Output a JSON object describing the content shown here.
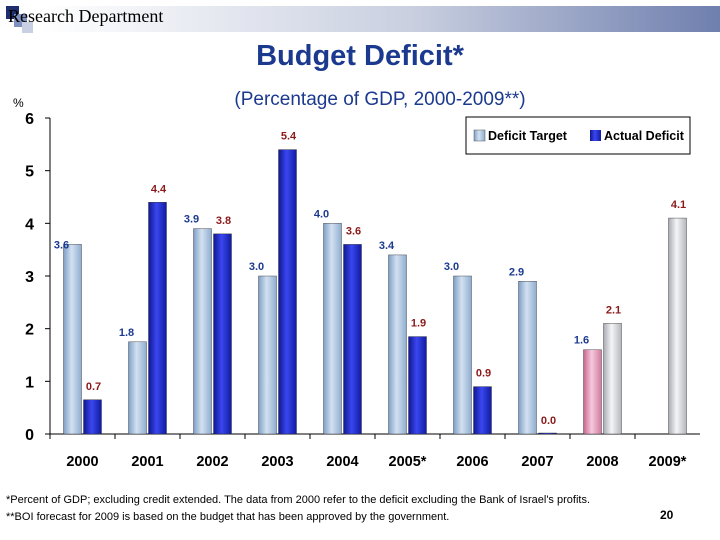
{
  "header": {
    "department": "Research Department"
  },
  "chart_data": {
    "type": "bar",
    "title": "Budget Deficit*",
    "subtitle": "(Percentage of GDP, 2000-2009**)",
    "ylabel": "%",
    "ylim": [
      0,
      6
    ],
    "yticks": [
      "0",
      "1",
      "2",
      "3",
      "4",
      "5",
      "6"
    ],
    "categories": [
      "2000",
      "2001",
      "2002",
      "2003",
      "2004",
      "2005*",
      "2006",
      "2007",
      "2008",
      "2009*"
    ],
    "series": [
      {
        "name": "Deficit Target",
        "values": [
          3.6,
          1.75,
          3.9,
          3.0,
          4.0,
          3.4,
          3.0,
          2.9,
          1.6,
          4.1
        ],
        "labels": [
          "3.6",
          "1.8",
          "3.9",
          "3.0",
          "4.0",
          "3.4",
          "3.0",
          "2.9",
          "1.6",
          "4.1"
        ]
      },
      {
        "name": "Actual Deficit",
        "values": [
          0.65,
          4.4,
          3.8,
          5.4,
          3.6,
          1.85,
          0.9,
          0.0,
          2.1,
          null
        ],
        "labels": [
          "0.7",
          "4.4",
          "3.8",
          "5.4",
          "3.6",
          "1.9",
          "0.9",
          "0.0",
          "2.1",
          ""
        ]
      }
    ],
    "legend_position": "top-right",
    "grid": false
  },
  "footnotes": {
    "note1": "*Percent of GDP; excluding credit extended. The data from 2000 refer to the deficit excluding the Bank of Israel's profits.",
    "note2": "**BOI forecast for 2009 is based on the budget that has been approved by the government."
  },
  "page_number": "20",
  "colors": {
    "title": "#1b3a8f",
    "target": "#a9c2de",
    "actual": "#1a24c4",
    "label_target": "#1b3a8f",
    "label_actual": "#8b1a1a",
    "forecast_2008": "#e8a9c4",
    "forecast_2009": "#d2d4d8"
  }
}
